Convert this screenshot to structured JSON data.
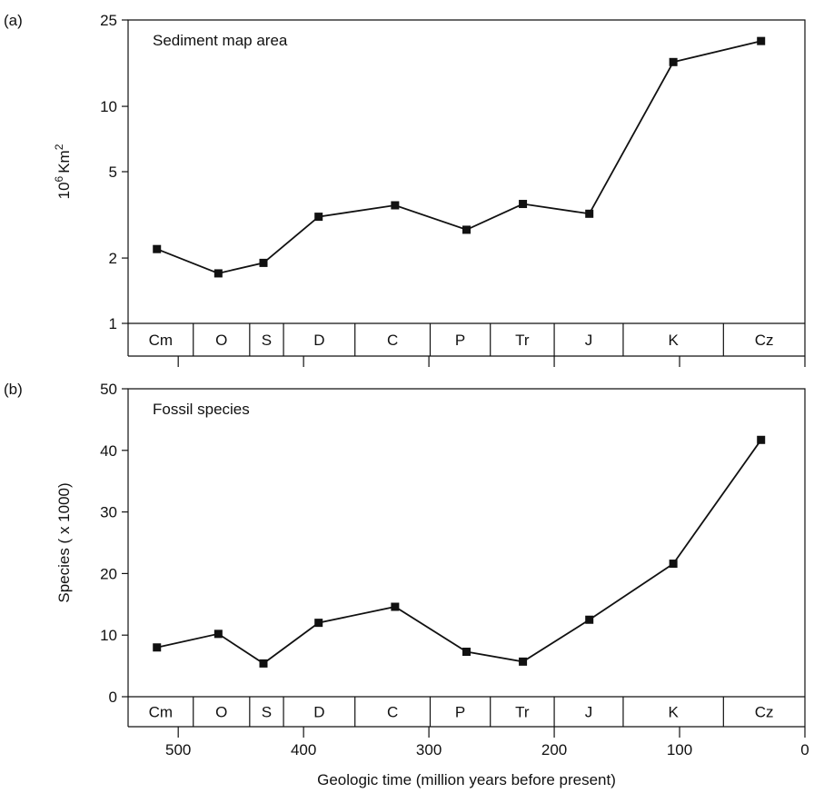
{
  "chart_data": [
    {
      "panel": "(a)",
      "type": "line",
      "title": "Sediment map area",
      "ylabel_base": "10",
      "ylabel_exp": "6",
      "ylabel_unit": "Km",
      "ylabel_unit_exp": "2",
      "yscale": "log",
      "ylim": [
        1,
        25
      ],
      "yticks": [
        1,
        2,
        5,
        10,
        25
      ],
      "xlim": [
        540,
        0
      ],
      "x": [
        517,
        468,
        432,
        388,
        327,
        270,
        225,
        172,
        105,
        35
      ],
      "y": [
        2.2,
        1.7,
        1.9,
        3.1,
        3.5,
        2.7,
        3.55,
        3.2,
        16,
        20
      ]
    },
    {
      "panel": "(b)",
      "type": "line",
      "title": "Fossil species",
      "ylabel": "Species ( x 1000)",
      "ylim": [
        0,
        50
      ],
      "yticks": [
        0,
        10,
        20,
        30,
        40,
        50
      ],
      "xlim": [
        540,
        0
      ],
      "xticks": [
        500,
        400,
        300,
        200,
        100,
        0
      ],
      "xlabel": "Geologic time (million years before present)",
      "x": [
        517,
        468,
        432,
        388,
        327,
        270,
        225,
        172,
        105,
        35
      ],
      "y": [
        8,
        10.2,
        5.4,
        12,
        14.6,
        7.3,
        5.7,
        12.5,
        21.6,
        41.7
      ]
    }
  ],
  "periods": [
    {
      "label": "Cm",
      "start": 540,
      "end": 488
    },
    {
      "label": "O",
      "start": 488,
      "end": 443
    },
    {
      "label": "S",
      "start": 443,
      "end": 416
    },
    {
      "label": "D",
      "start": 416,
      "end": 359
    },
    {
      "label": "C",
      "start": 359,
      "end": 299
    },
    {
      "label": "P",
      "start": 299,
      "end": 251
    },
    {
      "label": "Tr",
      "start": 251,
      "end": 200
    },
    {
      "label": "J",
      "start": 200,
      "end": 145
    },
    {
      "label": "K",
      "start": 145,
      "end": 65
    },
    {
      "label": "Cz",
      "start": 65,
      "end": 0
    }
  ]
}
